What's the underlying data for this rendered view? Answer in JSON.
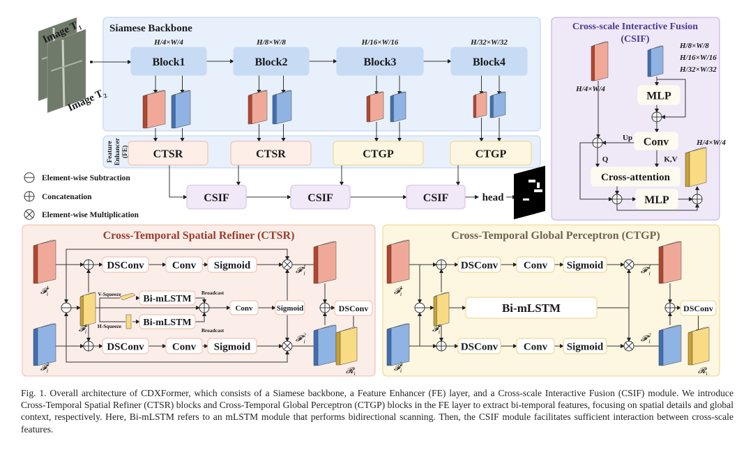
{
  "inputs": {
    "image_t1": {
      "base": "Image T",
      "sub": "1"
    },
    "image_t2": {
      "base": "Image T",
      "sub": "2"
    }
  },
  "backbone": {
    "title": "Siamese Backbone",
    "blocks": [
      {
        "label": "Block1",
        "size": "H/4×W/4"
      },
      {
        "label": "Block2",
        "size": "H/8×W/8"
      },
      {
        "label": "Block3",
        "size": "H/16×W/16"
      },
      {
        "label": "Block4",
        "size": "H/32×W/32"
      }
    ]
  },
  "feature_enhancer": {
    "title_lines": [
      "Feature",
      "Enhancer",
      "(FE)"
    ],
    "modules": [
      "CTSR",
      "CTSR",
      "CTGP",
      "CTGP"
    ]
  },
  "fusion": {
    "csif": [
      "CSIF",
      "CSIF",
      "CSIF"
    ],
    "head": "head"
  },
  "legend": [
    {
      "symbol": "ominus",
      "label": "Element-wise Subtraction"
    },
    {
      "symbol": "oplus",
      "label": "Concatenation"
    },
    {
      "symbol": "otimes",
      "label": "Element-wise Multiplication"
    }
  ],
  "csif_panel": {
    "title_line1": "Cross-scale Interactive Fusion",
    "title_line2": "(CSIF)",
    "low_size": "H/4×W/4",
    "high_sizes": [
      "H/8×W/8",
      "H/16×W/16",
      "H/32×W/32"
    ],
    "out_size": "H/4×W/4",
    "mlp": "MLP",
    "conv": "Conv",
    "up": "Up",
    "q": "Q",
    "kv": "K,V",
    "cross_attention": "Cross-attention",
    "mlp2": "MLP"
  },
  "ctsr_panel": {
    "title": "Cross-Temporal Spatial Refiner (CTSR)",
    "top_row": [
      "DSConv",
      "Conv",
      "Sigmoid"
    ],
    "bottom_row": [
      "DSConv",
      "Conv",
      "Sigmoid"
    ],
    "v_squeeze": "V-Squeeze",
    "h_squeeze": "H-Squeeze",
    "bi_mlstm_1": "Bi-mLSTM",
    "bi_mlstm_2": "Bi-mLSTM",
    "broadcast_1": "Broadcast",
    "broadcast_2": "Broadcast",
    "mid_conv": "Conv",
    "mid_sigmoid": "Sigmoid",
    "out_dsconv": "DSConv"
  },
  "ctgp_panel": {
    "title": "Cross-Temporal Global Perceptron  (CTGP)",
    "top_row": [
      "DSConv",
      "Conv",
      "Sigmoid"
    ],
    "bottom_row": [
      "DSConv",
      "Conv",
      "Sigmoid"
    ],
    "bi_mlstm": "Bi-mLSTM",
    "out_dsconv": "DSConv"
  },
  "math": {
    "f1": {
      "base": "𝓕",
      "sub": "i",
      "sup": "1"
    },
    "f2": {
      "base": "𝓕",
      "sub": "i",
      "sup": "2"
    },
    "fc": {
      "base": "𝓕",
      "sub": "i",
      "sup": "c"
    },
    "f1p": {
      "base": "𝓕′",
      "sub": "i",
      "sup": "1"
    },
    "f2p": {
      "base": "𝓕′",
      "sub": "i",
      "sup": "2"
    },
    "r": {
      "base": "𝓡",
      "sub": "i",
      "sup": ""
    }
  },
  "caption": "Fig. 1.  Overall architecture of CDXFormer, which consists of a Siamese backbone, a Feature Enhancer (FE) layer, and a Cross-scale Interactive Fusion (CSIF) module. We introduce Cross-Temporal Spatial Refiner (CTSR) blocks and Cross-Temporal Global Perceptron (CTGP) blocks in the FE layer to extract bi-temporal features, focusing on spatial details and global context, respectively. Here, Bi-mLSTM refers to an mLSTM module that performs bidirectional scanning. Then, the CSIF module facilitates sufficient interaction between cross-scale features.",
  "colors": {
    "backbone_panel": "#e8f0fb",
    "block_fill": "#c9dcf5",
    "ctsr_fill": "#fdeee8",
    "ctgp_fill": "#fdf6e0",
    "csif_fill": "#efe8f7",
    "csif_title": "#4b3a8f",
    "ctsr_title": "#9b3b2b",
    "ctgp_title": "#6e6450",
    "feature_t1": "#f0a998",
    "feature_t2": "#8fb4e3",
    "feature_diff": "#f9db84"
  }
}
